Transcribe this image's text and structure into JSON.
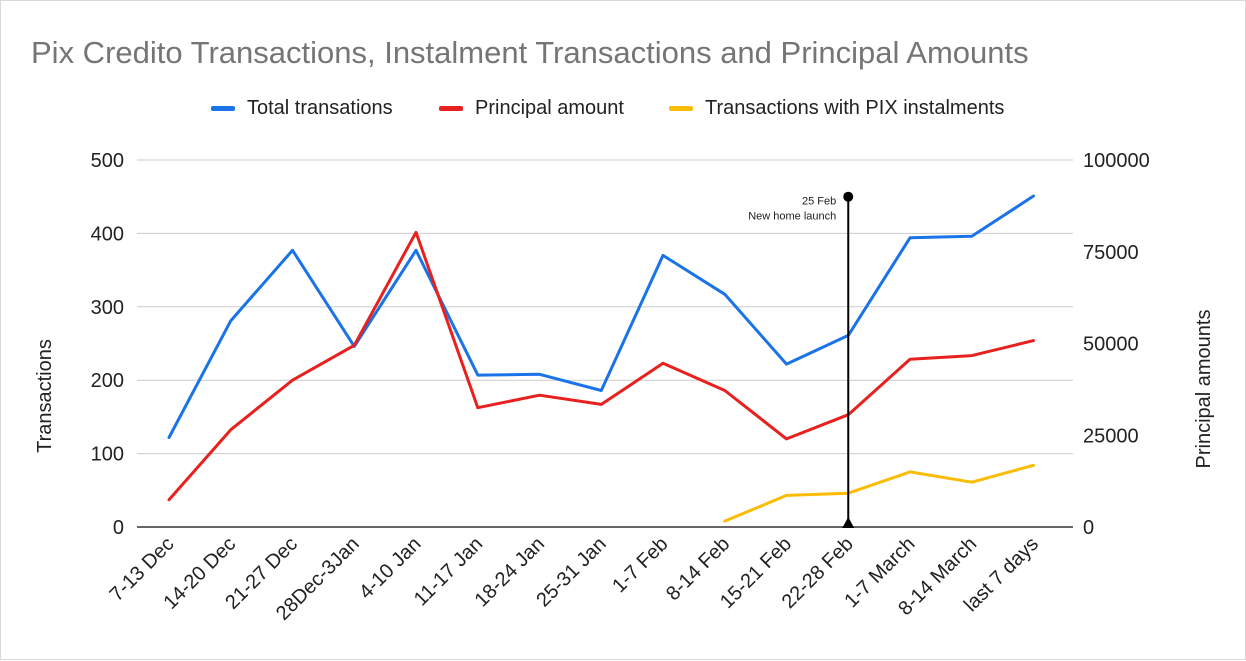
{
  "chart_data": {
    "type": "line",
    "title": "Pix Credito Transactions, Instalment Transactions and Principal Amounts",
    "categories": [
      "7-13 Dec",
      "14-20 Dec",
      "21-27 Dec",
      "28Dec-3Jan",
      "4-10 Jan",
      "11-17 Jan",
      "18-24 Jan",
      "25-31 Jan",
      "1-7 Feb",
      "8-14 Feb",
      "15-21 Feb",
      "22-28 Feb",
      "1-7 March",
      "8-14 March",
      "last 7 days"
    ],
    "ylabel_left": "Transactions",
    "ylabel_right": "Principal amounts",
    "ylim_left": [
      0,
      500
    ],
    "ylim_right": [
      0,
      100000
    ],
    "yticks_left": [
      "0",
      "100",
      "200",
      "300",
      "400",
      "500"
    ],
    "yticks_right": [
      "0",
      "25000",
      "50000",
      "75000",
      "100000"
    ],
    "grid": true,
    "legend_position": "top",
    "series": [
      {
        "name": "Total transations",
        "axis": "left",
        "color": "#1a73e8",
        "values": [
          122,
          281,
          377,
          246,
          377,
          207,
          208,
          186,
          370,
          317,
          222,
          261,
          394,
          396,
          451
        ]
      },
      {
        "name": "Principal amount",
        "axis": "right",
        "color": "#e8211f",
        "values": [
          7400,
          26500,
          40000,
          49500,
          80300,
          32500,
          35900,
          33400,
          44600,
          37200,
          24000,
          30600,
          45700,
          46700,
          50800
        ]
      },
      {
        "name": "Transactions with PIX instalments",
        "axis": "left",
        "color": "#fbbc04",
        "values": [
          null,
          null,
          null,
          null,
          null,
          null,
          null,
          null,
          null,
          8,
          43,
          46,
          75,
          61,
          84
        ]
      }
    ],
    "annotation": {
      "category": "22-28 Feb",
      "value": 450,
      "line1": "25 Feb",
      "line2": "New home launch",
      "color": "#000000"
    }
  }
}
